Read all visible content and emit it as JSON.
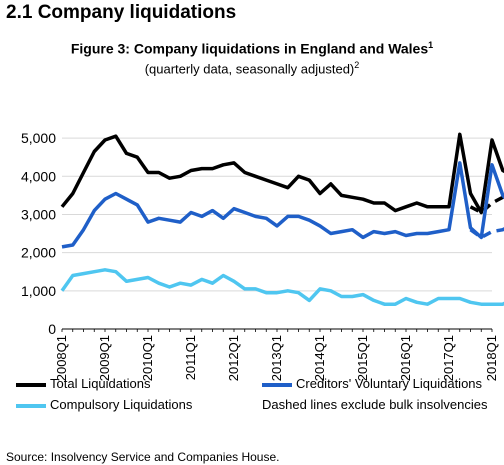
{
  "heading": "2.1 Company liquidations",
  "figure": {
    "title": "Figure 3: Company liquidations in England and Wales",
    "title_sup": "1",
    "subtitle": "(quarterly data, seasonally adjusted)",
    "subtitle_sup": "2"
  },
  "source": "Source: Insolvency Service and Companies House.",
  "note": "Dashed lines exclude bulk insolvencies",
  "colors": {
    "total": "#000000",
    "cvl": "#1f5fc8",
    "compulsory": "#4fc6f0"
  },
  "chart_data": {
    "type": "line",
    "ylim": [
      0,
      5500
    ],
    "yticks": [
      0,
      1000,
      2000,
      3000,
      4000,
      5000
    ],
    "ytick_labels": [
      "0",
      "1,000",
      "2,000",
      "3,000",
      "4,000",
      "5,000"
    ],
    "x_start": "2008Q1",
    "x_end": "2018Q1",
    "xtick_labels": [
      "2008Q1",
      "2009Q1",
      "2010Q1",
      "2011Q1",
      "2012Q1",
      "2013Q1",
      "2014Q1",
      "2015Q1",
      "2016Q1",
      "2017Q1",
      "2018Q1"
    ],
    "series": [
      {
        "name": "Total Liquidations",
        "color": "#000000",
        "values": [
          3200,
          3550,
          4100,
          4650,
          4950,
          5050,
          4600,
          4500,
          4100,
          4100,
          3950,
          4000,
          4150,
          4200,
          4200,
          4300,
          4350,
          4100,
          4000,
          3900,
          3800,
          3700,
          4000,
          3900,
          3550,
          3800,
          3500,
          3450,
          3400,
          3300,
          3300,
          3100,
          3200,
          3300,
          3200,
          3200,
          3200,
          5100,
          3550,
          3050,
          4950,
          4150,
          4000
        ],
        "dashed": [
          3200,
          3050,
          3300,
          3450,
          3650
        ]
      },
      {
        "name": "Creditors' Voluntary Liquidations",
        "color": "#1f5fc8",
        "values": [
          2150,
          2200,
          2600,
          3100,
          3400,
          3550,
          3400,
          3250,
          2800,
          2900,
          2850,
          2800,
          3050,
          2950,
          3100,
          2900,
          3150,
          3050,
          2950,
          2900,
          2700,
          2950,
          2950,
          2850,
          2700,
          2500,
          2550,
          2600,
          2400,
          2550,
          2500,
          2550,
          2450,
          2500,
          2500,
          2550,
          2600,
          4350,
          2650,
          2400,
          4300,
          3500,
          3200
        ],
        "dashed": [
          2600,
          2400,
          2550,
          2600,
          2750
        ]
      },
      {
        "name": "Compulsory Liquidations",
        "color": "#4fc6f0",
        "values": [
          1000,
          1400,
          1450,
          1500,
          1550,
          1500,
          1250,
          1300,
          1350,
          1200,
          1100,
          1200,
          1150,
          1300,
          1200,
          1400,
          1250,
          1050,
          1050,
          950,
          950,
          1000,
          950,
          750,
          1050,
          1000,
          850,
          850,
          900,
          750,
          650,
          650,
          800,
          700,
          650,
          800,
          800,
          800,
          700,
          650,
          650,
          650,
          800
        ]
      }
    ]
  }
}
